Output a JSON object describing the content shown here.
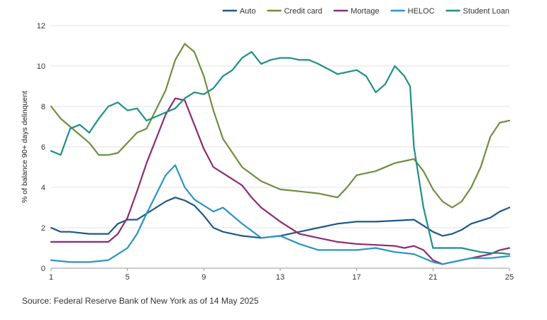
{
  "chart_data": {
    "type": "line",
    "ylabel": "% of balance 90+ days delinquent",
    "xlabel": "",
    "x_ticks": [
      1,
      5,
      9,
      13,
      17,
      21,
      25
    ],
    "y_ticks": [
      0,
      2,
      4,
      6,
      8,
      10,
      12
    ],
    "xlim": [
      1,
      25
    ],
    "ylim": [
      0,
      12
    ],
    "grid": "horizontal",
    "legend_position": "top-right",
    "series": [
      {
        "name": "Auto",
        "color": "#1d5a86",
        "x": [
          1,
          1.5,
          2,
          3,
          4,
          4.5,
          5,
          5.5,
          6,
          7,
          7.5,
          8,
          8.5,
          9,
          9.5,
          10,
          11,
          12,
          13,
          14,
          15,
          16,
          17,
          18,
          19,
          20,
          20.5,
          21,
          21.5,
          22,
          22.5,
          23,
          24,
          24.5,
          25
        ],
        "values": [
          2.0,
          1.8,
          1.8,
          1.7,
          1.7,
          2.2,
          2.4,
          2.4,
          2.7,
          3.3,
          3.5,
          3.35,
          3.1,
          2.6,
          2.0,
          1.8,
          1.6,
          1.5,
          1.6,
          1.8,
          2.0,
          2.2,
          2.3,
          2.3,
          2.35,
          2.4,
          2.1,
          1.8,
          1.6,
          1.7,
          1.9,
          2.2,
          2.5,
          2.8,
          3.0
        ]
      },
      {
        "name": "Credit card",
        "color": "#6e8f3f",
        "x": [
          1,
          1.5,
          2,
          3,
          3.5,
          4,
          4.5,
          5,
          5.5,
          6,
          7,
          7.5,
          8,
          8.5,
          9,
          9.5,
          10,
          11,
          12,
          13,
          14,
          15,
          16,
          16.5,
          17,
          18,
          19,
          19.5,
          20,
          20.5,
          21,
          21.5,
          22,
          22.5,
          23,
          23.5,
          24,
          24.5,
          25
        ],
        "values": [
          8.0,
          7.4,
          7.0,
          6.2,
          5.6,
          5.6,
          5.7,
          6.2,
          6.7,
          6.9,
          8.8,
          10.3,
          11.1,
          10.7,
          9.5,
          7.8,
          6.4,
          5.0,
          4.3,
          3.9,
          3.8,
          3.7,
          3.5,
          4.0,
          4.6,
          4.8,
          5.2,
          5.3,
          5.4,
          4.8,
          3.9,
          3.3,
          3.0,
          3.3,
          4.0,
          5.0,
          6.5,
          7.2,
          7.3
        ]
      },
      {
        "name": "Mortage",
        "color": "#8b2c74",
        "x": [
          1,
          2,
          3,
          4,
          4.5,
          5,
          5.5,
          6,
          7,
          7.5,
          8,
          8.5,
          9,
          9.5,
          10,
          11,
          11.5,
          12,
          13,
          14,
          15,
          16,
          17,
          18,
          19,
          19.5,
          20,
          20.5,
          21,
          21.5,
          22,
          23,
          24,
          24.5,
          25
        ],
        "values": [
          1.3,
          1.3,
          1.3,
          1.3,
          1.7,
          2.5,
          3.8,
          5.2,
          7.6,
          8.4,
          8.3,
          7.1,
          5.9,
          5.0,
          4.7,
          4.1,
          3.5,
          3.0,
          2.3,
          1.7,
          1.5,
          1.3,
          1.2,
          1.15,
          1.1,
          1.0,
          1.1,
          0.9,
          0.4,
          0.2,
          0.3,
          0.5,
          0.7,
          0.9,
          1.0
        ]
      },
      {
        "name": "HELOC",
        "color": "#2b94c4",
        "x": [
          1,
          2,
          3,
          4,
          4.5,
          5,
          5.5,
          6,
          7,
          7.5,
          8,
          8.5,
          9,
          9.5,
          10,
          11,
          12,
          13,
          14,
          15,
          16,
          17,
          18,
          19,
          20,
          21,
          21.5,
          22,
          22.5,
          23,
          24,
          25
        ],
        "values": [
          0.4,
          0.3,
          0.3,
          0.4,
          0.7,
          1.0,
          1.7,
          2.7,
          4.6,
          5.1,
          4.0,
          3.4,
          3.1,
          2.8,
          3.0,
          2.2,
          1.5,
          1.6,
          1.2,
          0.9,
          0.9,
          0.9,
          1.0,
          0.8,
          0.7,
          0.3,
          0.2,
          0.3,
          0.4,
          0.5,
          0.5,
          0.6
        ]
      },
      {
        "name": "Student Loan",
        "color": "#1f8f86",
        "x": [
          1,
          1.5,
          2,
          2.5,
          3,
          3.5,
          4,
          4.5,
          5,
          5.5,
          6,
          6.5,
          7,
          7.5,
          8,
          8.5,
          9,
          9.5,
          10,
          10.5,
          11,
          11.5,
          12,
          12.5,
          13,
          13.5,
          14,
          14.5,
          15,
          16,
          16.5,
          17,
          17.5,
          18,
          18.5,
          19,
          19.5,
          19.8,
          20,
          20.5,
          21,
          21.5,
          22,
          22.5,
          23,
          23.5,
          24,
          24.5,
          25
        ],
        "values": [
          5.8,
          5.6,
          6.9,
          7.1,
          6.7,
          7.4,
          8.0,
          8.2,
          7.8,
          7.9,
          7.3,
          7.5,
          7.7,
          7.9,
          8.4,
          8.7,
          8.6,
          8.9,
          9.5,
          9.8,
          10.4,
          10.7,
          10.1,
          10.3,
          10.4,
          10.4,
          10.3,
          10.3,
          10.1,
          9.6,
          9.7,
          9.8,
          9.5,
          8.7,
          9.1,
          10.0,
          9.5,
          9.0,
          6.0,
          3.0,
          1.0,
          1.0,
          1.0,
          1.0,
          0.9,
          0.8,
          0.75,
          0.75,
          0.7
        ]
      }
    ]
  },
  "source": "Source: Federal Reserve Bank of New York as of 14 May 2025"
}
